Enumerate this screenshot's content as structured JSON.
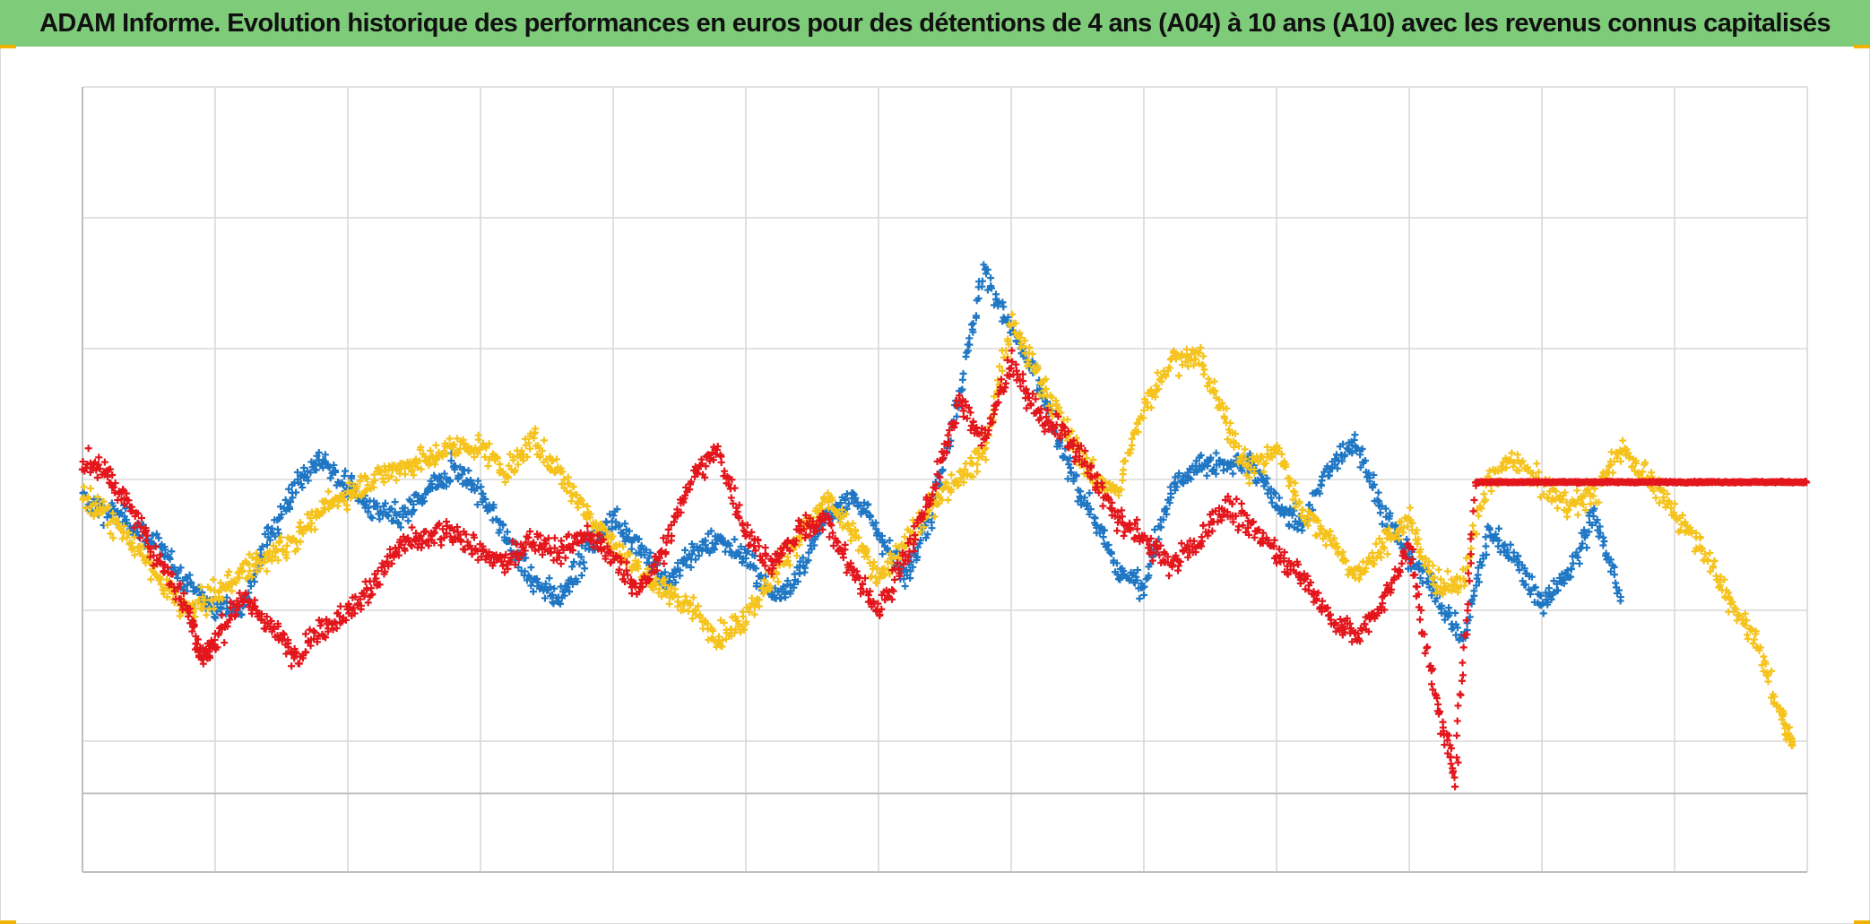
{
  "title": "ADAM Informe. Evolution historique des performances en euros pour des détentions de 4 ans (A04) à 10 ans (A10) avec les revenus connus capitalisés",
  "colors": {
    "title_bg": "#7ecb7a",
    "series_blue": "#1f77c4",
    "series_yellow": "#f5c31c",
    "series_red": "#e3161c",
    "grid": "#d9d9d9"
  },
  "chart_data": {
    "type": "scatter",
    "marker": "plus",
    "title": "ADAM Informe. Evolution historique des performances en euros pour des détentions de 4 ans (A04) à 10 ans (A10) avec les revenus connus capitalisés",
    "xlabel": "",
    "ylabel": "",
    "tick_labels_shown": false,
    "grid": true,
    "xlim": [
      0,
      13
    ],
    "ylim": [
      0,
      6
    ],
    "baseline_y": 0.6,
    "series": [
      {
        "color": "#1f77c4",
        "points": [
          [
            0.0,
            2.85
          ],
          [
            0.2,
            2.75
          ],
          [
            0.4,
            2.65
          ],
          [
            0.6,
            2.45
          ],
          [
            0.8,
            2.2
          ],
          [
            1.0,
            2.0
          ],
          [
            1.2,
            2.05
          ],
          [
            1.4,
            2.55
          ],
          [
            1.6,
            2.95
          ],
          [
            1.8,
            3.15
          ],
          [
            2.0,
            2.95
          ],
          [
            2.2,
            2.75
          ],
          [
            2.4,
            2.7
          ],
          [
            2.6,
            2.9
          ],
          [
            2.8,
            3.1
          ],
          [
            3.0,
            2.9
          ],
          [
            3.2,
            2.55
          ],
          [
            3.4,
            2.2
          ],
          [
            3.6,
            2.1
          ],
          [
            3.8,
            2.45
          ],
          [
            4.0,
            2.7
          ],
          [
            4.2,
            2.5
          ],
          [
            4.4,
            2.2
          ],
          [
            4.6,
            2.45
          ],
          [
            4.8,
            2.55
          ],
          [
            5.0,
            2.4
          ],
          [
            5.2,
            2.1
          ],
          [
            5.4,
            2.25
          ],
          [
            5.6,
            2.7
          ],
          [
            5.8,
            2.9
          ],
          [
            6.0,
            2.6
          ],
          [
            6.2,
            2.25
          ],
          [
            6.4,
            2.75
          ],
          [
            6.6,
            3.6
          ],
          [
            6.8,
            4.6
          ],
          [
            7.0,
            4.15
          ],
          [
            7.2,
            3.75
          ],
          [
            7.4,
            3.15
          ],
          [
            7.6,
            2.75
          ],
          [
            7.8,
            2.3
          ],
          [
            8.0,
            2.2
          ],
          [
            8.2,
            2.9
          ],
          [
            8.4,
            3.1
          ],
          [
            8.6,
            3.1
          ],
          [
            8.8,
            3.15
          ],
          [
            9.0,
            2.8
          ],
          [
            9.2,
            2.65
          ],
          [
            9.4,
            3.1
          ],
          [
            9.6,
            3.3
          ],
          [
            9.8,
            2.75
          ],
          [
            10.0,
            2.4
          ],
          [
            10.2,
            2.15
          ],
          [
            10.4,
            1.75
          ],
          [
            10.6,
            2.6
          ],
          [
            10.8,
            2.4
          ],
          [
            11.0,
            2.05
          ],
          [
            11.2,
            2.25
          ],
          [
            11.4,
            2.75
          ],
          [
            11.6,
            2.05
          ]
        ]
      },
      {
        "color": "#f5c31c",
        "points": [
          [
            0.0,
            2.9
          ],
          [
            0.2,
            2.7
          ],
          [
            0.4,
            2.5
          ],
          [
            0.6,
            2.2
          ],
          [
            0.8,
            2.0
          ],
          [
            1.0,
            2.1
          ],
          [
            1.2,
            2.3
          ],
          [
            1.4,
            2.4
          ],
          [
            1.6,
            2.55
          ],
          [
            1.8,
            2.75
          ],
          [
            2.0,
            2.9
          ],
          [
            2.2,
            3.0
          ],
          [
            2.4,
            3.1
          ],
          [
            2.6,
            3.15
          ],
          [
            2.8,
            3.25
          ],
          [
            3.0,
            3.25
          ],
          [
            3.2,
            3.05
          ],
          [
            3.4,
            3.3
          ],
          [
            3.6,
            3.05
          ],
          [
            3.8,
            2.75
          ],
          [
            4.0,
            2.5
          ],
          [
            4.2,
            2.3
          ],
          [
            4.4,
            2.15
          ],
          [
            4.6,
            2.0
          ],
          [
            4.8,
            1.8
          ],
          [
            5.0,
            1.95
          ],
          [
            5.2,
            2.25
          ],
          [
            5.4,
            2.55
          ],
          [
            5.6,
            2.85
          ],
          [
            5.8,
            2.6
          ],
          [
            6.0,
            2.25
          ],
          [
            6.2,
            2.5
          ],
          [
            6.4,
            2.8
          ],
          [
            6.6,
            3.0
          ],
          [
            6.8,
            3.2
          ],
          [
            7.0,
            4.2
          ],
          [
            7.2,
            3.8
          ],
          [
            7.4,
            3.4
          ],
          [
            7.6,
            3.05
          ],
          [
            7.8,
            2.9
          ],
          [
            8.0,
            3.55
          ],
          [
            8.2,
            3.9
          ],
          [
            8.4,
            3.95
          ],
          [
            8.6,
            3.5
          ],
          [
            8.8,
            3.05
          ],
          [
            9.0,
            3.25
          ],
          [
            9.2,
            2.75
          ],
          [
            9.4,
            2.55
          ],
          [
            9.6,
            2.25
          ],
          [
            9.8,
            2.5
          ],
          [
            10.0,
            2.7
          ],
          [
            10.2,
            2.2
          ],
          [
            10.4,
            2.2
          ],
          [
            10.6,
            3.0
          ],
          [
            10.8,
            3.15
          ],
          [
            11.0,
            2.95
          ],
          [
            11.2,
            2.8
          ],
          [
            11.4,
            2.9
          ],
          [
            11.6,
            3.25
          ],
          [
            11.8,
            3.0
          ],
          [
            12.0,
            2.75
          ],
          [
            12.2,
            2.5
          ],
          [
            12.4,
            2.1
          ],
          [
            12.6,
            1.8
          ],
          [
            12.8,
            1.2
          ],
          [
            12.9,
            0.95
          ]
        ]
      },
      {
        "color": "#e3161c",
        "points": [
          [
            0.0,
            3.15
          ],
          [
            0.2,
            3.05
          ],
          [
            0.4,
            2.7
          ],
          [
            0.6,
            2.35
          ],
          [
            0.8,
            2.0
          ],
          [
            0.9,
            1.65
          ],
          [
            1.0,
            1.75
          ],
          [
            1.2,
            2.1
          ],
          [
            1.4,
            1.9
          ],
          [
            1.6,
            1.65
          ],
          [
            1.8,
            1.85
          ],
          [
            2.0,
            2.0
          ],
          [
            2.2,
            2.2
          ],
          [
            2.4,
            2.5
          ],
          [
            2.6,
            2.55
          ],
          [
            2.8,
            2.6
          ],
          [
            3.0,
            2.45
          ],
          [
            3.2,
            2.35
          ],
          [
            3.4,
            2.55
          ],
          [
            3.6,
            2.45
          ],
          [
            3.8,
            2.6
          ],
          [
            4.0,
            2.4
          ],
          [
            4.2,
            2.15
          ],
          [
            4.4,
            2.5
          ],
          [
            4.6,
            3.05
          ],
          [
            4.8,
            3.2
          ],
          [
            5.0,
            2.6
          ],
          [
            5.2,
            2.35
          ],
          [
            5.4,
            2.6
          ],
          [
            5.6,
            2.7
          ],
          [
            5.8,
            2.3
          ],
          [
            6.0,
            2.0
          ],
          [
            6.2,
            2.4
          ],
          [
            6.4,
            2.9
          ],
          [
            6.6,
            3.6
          ],
          [
            6.8,
            3.3
          ],
          [
            7.0,
            3.9
          ],
          [
            7.2,
            3.5
          ],
          [
            7.4,
            3.35
          ],
          [
            7.6,
            3.05
          ],
          [
            7.8,
            2.7
          ],
          [
            8.0,
            2.55
          ],
          [
            8.2,
            2.35
          ],
          [
            8.4,
            2.5
          ],
          [
            8.6,
            2.8
          ],
          [
            8.8,
            2.65
          ],
          [
            9.0,
            2.45
          ],
          [
            9.2,
            2.25
          ],
          [
            9.4,
            1.95
          ],
          [
            9.6,
            1.8
          ],
          [
            9.8,
            2.05
          ],
          [
            10.0,
            2.5
          ],
          [
            10.2,
            1.3
          ],
          [
            10.35,
            0.75
          ],
          [
            10.5,
            2.98
          ],
          [
            11.0,
            2.98
          ],
          [
            11.5,
            2.98
          ],
          [
            12.0,
            2.98
          ],
          [
            12.5,
            2.98
          ],
          [
            13.0,
            2.98
          ]
        ]
      }
    ]
  }
}
